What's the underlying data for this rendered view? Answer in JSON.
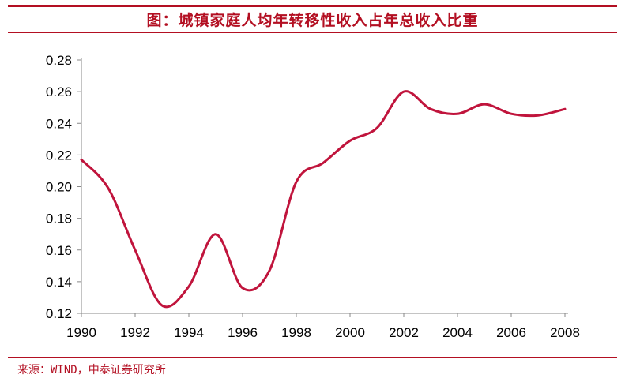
{
  "title": "图：城镇家庭人均年转移性收入占年总收入比重",
  "source": "来源：WIND，中泰证券研究所",
  "colors": {
    "accent": "#b30f22",
    "line": "#c0143c",
    "axis": "#888888"
  },
  "chart_data": {
    "type": "line",
    "title": "图：城镇家庭人均年转移性收入占年总收入比重",
    "xlabel": "",
    "ylabel": "",
    "xlim": [
      1990,
      2008
    ],
    "ylim": [
      0.12,
      0.28
    ],
    "x_ticks": [
      "1990",
      "1992",
      "1994",
      "1996",
      "1998",
      "2000",
      "2002",
      "2004",
      "2006",
      "2008"
    ],
    "y_ticks": [
      "0.12",
      "0.14",
      "0.16",
      "0.18",
      "0.20",
      "0.22",
      "0.24",
      "0.26",
      "0.28"
    ],
    "grid": false,
    "legend": "none",
    "series": [
      {
        "x": [
          1990,
          1991,
          1992,
          1993,
          1994,
          1995,
          1996,
          1997,
          1998,
          1999,
          2000,
          2001,
          2002,
          2003,
          2004,
          2005,
          2006,
          2007,
          2008
        ],
        "values": [
          0.217,
          0.199,
          0.16,
          0.125,
          0.137,
          0.17,
          0.136,
          0.147,
          0.203,
          0.215,
          0.229,
          0.237,
          0.26,
          0.249,
          0.246,
          0.252,
          0.246,
          0.245,
          0.249
        ]
      }
    ]
  }
}
